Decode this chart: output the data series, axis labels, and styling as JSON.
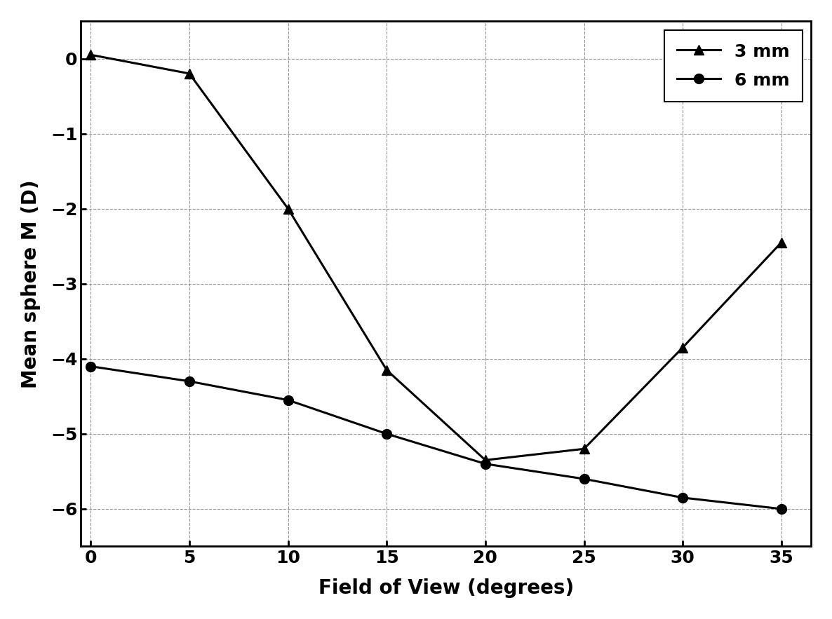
{
  "x": [
    0,
    5,
    10,
    15,
    20,
    25,
    30,
    35
  ],
  "y_3mm": [
    0.05,
    -0.2,
    -2.0,
    -4.15,
    -5.35,
    -5.2,
    -3.85,
    -2.45
  ],
  "y_6mm": [
    -4.1,
    -4.3,
    -4.55,
    -5.0,
    -5.4,
    -5.6,
    -5.85,
    -6.0
  ],
  "xlabel": "Field of View (degrees)",
  "ylabel": "Mean sphere M (D)",
  "xlim": [
    -0.5,
    36.5
  ],
  "ylim": [
    -6.5,
    0.5
  ],
  "xticks": [
    0,
    5,
    10,
    15,
    20,
    25,
    30,
    35
  ],
  "yticks": [
    0,
    -1,
    -2,
    -3,
    -4,
    -5,
    -6
  ],
  "legend_3mm": "3 mm",
  "legend_6mm": "6 mm",
  "line_color": "#000000",
  "background_color": "#ffffff",
  "grid_color": "#888888",
  "label_fontsize": 20,
  "tick_fontsize": 18,
  "legend_fontsize": 18,
  "linewidth": 2.2,
  "markersize": 10
}
